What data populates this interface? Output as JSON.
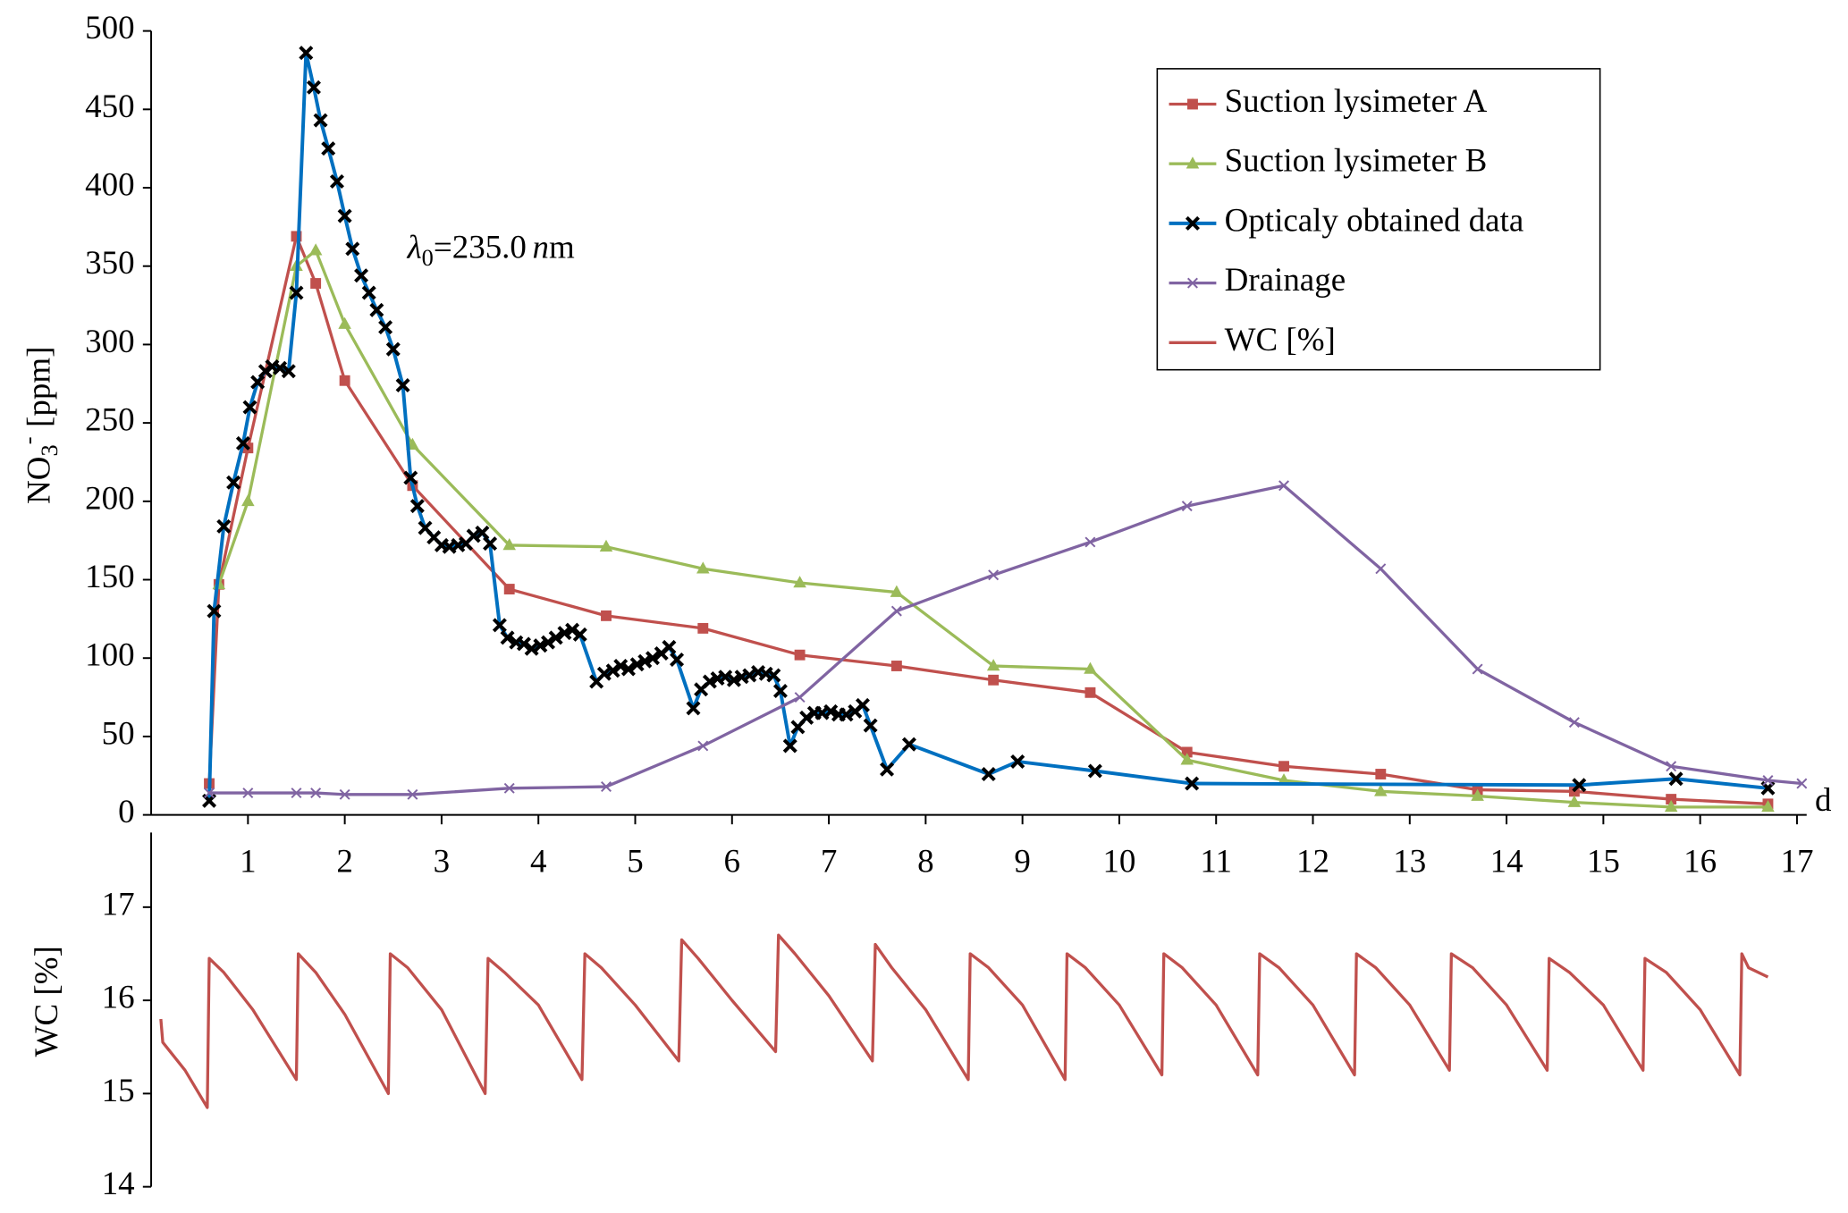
{
  "chart_data": [
    {
      "type": "line",
      "ylabel": "NO",
      "ylabel_sub": "3",
      "ylabel_sup": "-",
      "ylabel_unit": "[ppm]",
      "xlabel": "d",
      "annotation": {
        "symbol": "λ",
        "sub": "0",
        "text": "=235.0",
        "unit_italic": "n",
        "unit": "m"
      },
      "xlim": [
        0,
        17.1
      ],
      "xticks": [
        1,
        2,
        3,
        4,
        5,
        6,
        7,
        8,
        9,
        10,
        11,
        12,
        13,
        14,
        15,
        16,
        17
      ],
      "ylim": [
        0,
        500
      ],
      "yticks": [
        0,
        50,
        100,
        150,
        200,
        250,
        300,
        350,
        400,
        450,
        500
      ],
      "legend": "upper right",
      "series": [
        {
          "name": "Suction lysimeter A",
          "color": "#c0504d",
          "marker": "square",
          "x": [
            0.6,
            0.7,
            1.0,
            1.5,
            1.7,
            2.0,
            2.7,
            3.7,
            4.7,
            5.7,
            6.7,
            7.7,
            8.7,
            9.7,
            10.7,
            11.7,
            12.7,
            13.7,
            14.7,
            15.7,
            16.7
          ],
          "values": [
            20,
            147,
            234,
            369,
            339,
            277,
            210,
            144,
            127,
            119,
            102,
            95,
            86,
            78,
            40,
            31,
            26,
            16,
            15,
            10,
            7
          ]
        },
        {
          "name": "Suction lysimeter B",
          "color": "#9bbb59",
          "marker": "triangle",
          "x": [
            0.7,
            1.0,
            1.5,
            1.7,
            2.0,
            2.7,
            3.7,
            4.7,
            5.7,
            6.7,
            7.7,
            8.7,
            9.7,
            10.7,
            11.7,
            12.7,
            13.7,
            14.7,
            15.7,
            16.7
          ],
          "values": [
            147,
            200,
            350,
            360,
            313,
            236,
            172,
            171,
            157,
            148,
            142,
            95,
            93,
            35,
            22,
            15,
            12,
            8,
            5,
            5
          ]
        },
        {
          "name": "Opticaly obtained data",
          "color": "#0070c0",
          "marker": "x",
          "marker_color": "#000000",
          "x": [
            0.6,
            0.65,
            0.75,
            0.85,
            0.95,
            1.02,
            1.1,
            1.18,
            1.25,
            1.33,
            1.42,
            1.5,
            1.6,
            1.68,
            1.75,
            1.83,
            1.92,
            2.0,
            2.08,
            2.17,
            2.25,
            2.33,
            2.42,
            2.5,
            2.6,
            2.68,
            2.75,
            2.83,
            2.92,
            3.0,
            3.08,
            3.17,
            3.25,
            3.33,
            3.42,
            3.5,
            3.6,
            3.68,
            3.77,
            3.85,
            3.93,
            4.02,
            4.1,
            4.18,
            4.27,
            4.35,
            4.43,
            4.6,
            4.68,
            4.77,
            4.85,
            4.93,
            5.02,
            5.1,
            5.18,
            5.27,
            5.35,
            5.43,
            5.6,
            5.68,
            5.77,
            5.85,
            5.93,
            6.02,
            6.1,
            6.18,
            6.27,
            6.35,
            6.43,
            6.5,
            6.6,
            6.68,
            6.77,
            6.85,
            6.93,
            7.02,
            7.1,
            7.18,
            7.27,
            7.35,
            7.43,
            7.6,
            7.83,
            8.65,
            8.95,
            9.75,
            10.75,
            14.75,
            15.75,
            16.7
          ],
          "values": [
            9,
            130,
            184,
            212,
            237,
            260,
            276,
            283,
            286,
            285,
            283,
            333,
            486,
            464,
            443,
            425,
            404,
            382,
            361,
            344,
            333,
            322,
            311,
            297,
            274,
            215,
            197,
            183,
            177,
            172,
            171,
            172,
            173,
            178,
            180,
            173,
            121,
            113,
            110,
            109,
            106,
            108,
            110,
            113,
            116,
            118,
            115,
            85,
            90,
            92,
            95,
            93,
            96,
            98,
            100,
            103,
            107,
            99,
            68,
            80,
            85,
            87,
            88,
            86,
            88,
            89,
            91,
            90,
            89,
            79,
            44,
            56,
            62,
            65,
            65,
            66,
            64,
            64,
            66,
            70,
            57,
            29,
            45,
            26,
            34,
            28,
            20,
            19,
            23,
            17
          ]
        },
        {
          "name": "Drainage",
          "color": "#8064a2",
          "marker": "cross",
          "x": [
            0.6,
            1.0,
            1.5,
            1.7,
            2.0,
            2.7,
            3.7,
            4.7,
            5.7,
            6.7,
            7.7,
            8.7,
            9.7,
            10.7,
            11.7,
            12.7,
            13.7,
            14.7,
            15.7,
            16.7,
            17.05
          ],
          "values": [
            14,
            14,
            14,
            14,
            13,
            13,
            17,
            18,
            44,
            75,
            130,
            153,
            174,
            197,
            210,
            157,
            93,
            59,
            31,
            22,
            20
          ]
        }
      ]
    },
    {
      "type": "line",
      "ylabel": "WC [%]",
      "xlim": [
        0,
        17.1
      ],
      "ylim": [
        14,
        17.8
      ],
      "yticks": [
        14,
        15,
        16,
        17
      ],
      "series": [
        {
          "name": "WC [%]",
          "color": "#c0504d",
          "marker": "none",
          "x": [
            0.1,
            0.12,
            0.35,
            0.58,
            0.6,
            0.75,
            1.05,
            1.5,
            1.52,
            1.7,
            2.0,
            2.45,
            2.47,
            2.65,
            3.0,
            3.45,
            3.48,
            3.65,
            4.0,
            4.45,
            4.48,
            4.65,
            5.0,
            5.45,
            5.48,
            5.65,
            6.0,
            6.45,
            6.48,
            6.65,
            7.0,
            7.45,
            7.48,
            7.65,
            8.0,
            8.44,
            8.46,
            8.65,
            9.0,
            9.44,
            9.46,
            9.65,
            10.0,
            10.44,
            10.46,
            10.65,
            11.0,
            11.43,
            11.45,
            11.65,
            12.0,
            12.43,
            12.45,
            12.65,
            13.0,
            13.41,
            13.43,
            13.65,
            14.0,
            14.42,
            14.44,
            14.65,
            15.0,
            15.41,
            15.43,
            15.65,
            16.0,
            16.41,
            16.43,
            16.5,
            16.7
          ],
          "values": [
            15.8,
            15.55,
            15.25,
            14.85,
            16.45,
            16.3,
            15.9,
            15.15,
            16.5,
            16.3,
            15.85,
            15.0,
            16.5,
            16.35,
            15.9,
            15.0,
            16.45,
            16.3,
            15.95,
            15.15,
            16.5,
            16.35,
            15.95,
            15.35,
            16.65,
            16.45,
            16.0,
            15.45,
            16.7,
            16.5,
            16.05,
            15.35,
            16.6,
            16.35,
            15.9,
            15.15,
            16.5,
            16.35,
            15.95,
            15.15,
            16.5,
            16.35,
            15.95,
            15.2,
            16.5,
            16.35,
            15.95,
            15.2,
            16.5,
            16.35,
            15.95,
            15.2,
            16.5,
            16.35,
            15.95,
            15.25,
            16.5,
            16.35,
            15.95,
            15.25,
            16.45,
            16.3,
            15.95,
            15.25,
            16.45,
            16.3,
            15.9,
            15.2,
            16.5,
            16.35,
            16.25
          ]
        }
      ]
    }
  ]
}
